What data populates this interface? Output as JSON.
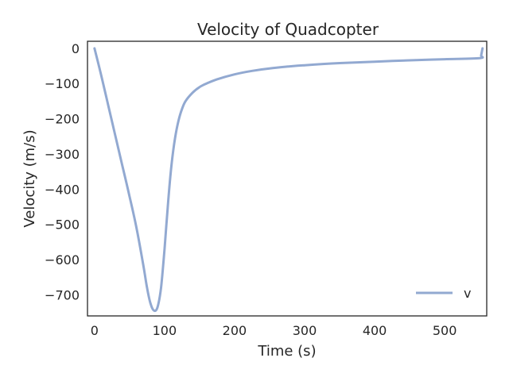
{
  "chart_data": {
    "type": "line",
    "title": "Velocity of Quadcopter",
    "xlabel": "Time (s)",
    "ylabel": "Velocity (m/s)",
    "xlim": [
      -10,
      560
    ],
    "ylim": [
      -760,
      20
    ],
    "xticks": [
      0,
      100,
      200,
      300,
      400,
      500
    ],
    "yticks": [
      0,
      -100,
      -200,
      -300,
      -400,
      -500,
      -600,
      -700
    ],
    "grid": false,
    "legend_position": "lower-right",
    "series": [
      {
        "name": "v",
        "color": "#92a9d1",
        "x": [
          0,
          10,
          20,
          30,
          40,
          50,
          60,
          70,
          75,
          80,
          85,
          90,
          95,
          100,
          105,
          110,
          115,
          120,
          125,
          130,
          140,
          150,
          160,
          175,
          200,
          225,
          250,
          275,
          300,
          350,
          400,
          450,
          500,
          550,
          552,
          554
        ],
        "y": [
          0,
          -80,
          -165,
          -250,
          -335,
          -420,
          -510,
          -620,
          -680,
          -725,
          -745,
          -735,
          -680,
          -570,
          -440,
          -330,
          -255,
          -205,
          -172,
          -150,
          -126,
          -110,
          -100,
          -88,
          -74,
          -64,
          -57,
          -52,
          -48,
          -42,
          -38,
          -34,
          -31,
          -28,
          -20,
          0
        ]
      }
    ]
  }
}
